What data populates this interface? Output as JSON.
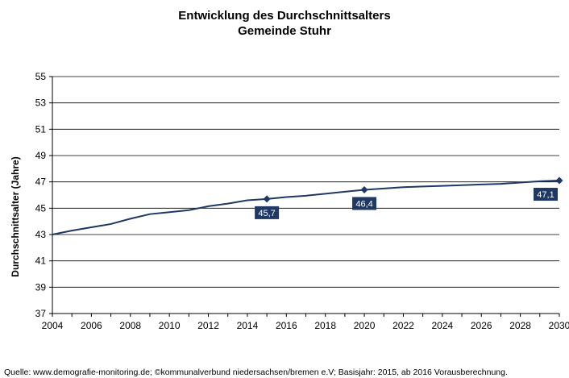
{
  "chart_data": {
    "type": "line",
    "title_line1": "Entwicklung des Durchschnittsalters",
    "title_line2": "Gemeinde Stuhr",
    "ylabel": "Durchschnittsalter  (Jahre)",
    "xlabel": "",
    "ylim": [
      37,
      55
    ],
    "yticks": [
      37,
      39,
      41,
      43,
      45,
      47,
      49,
      51,
      53,
      55
    ],
    "xlim": [
      2004,
      2030
    ],
    "xticks": [
      2004,
      2006,
      2008,
      2010,
      2012,
      2014,
      2016,
      2018,
      2020,
      2022,
      2024,
      2026,
      2028,
      2030
    ],
    "grid": true,
    "legend": "none",
    "line_color": "#1f3864",
    "series": [
      {
        "x": [
          2004,
          2005,
          2006,
          2007,
          2008,
          2009,
          2010,
          2011,
          2012,
          2013,
          2014,
          2015,
          2016,
          2017,
          2018,
          2019,
          2020,
          2021,
          2022,
          2023,
          2024,
          2025,
          2026,
          2027,
          2028,
          2029,
          2030
        ],
        "values": [
          43.0,
          43.3,
          43.55,
          43.8,
          44.2,
          44.55,
          44.7,
          44.85,
          45.15,
          45.35,
          45.6,
          45.7,
          45.85,
          45.95,
          46.1,
          46.25,
          46.4,
          46.5,
          46.6,
          46.65,
          46.7,
          46.75,
          46.8,
          46.85,
          46.95,
          47.05,
          47.1
        ]
      }
    ],
    "data_labels": [
      {
        "x": 2015,
        "value": 45.7,
        "text": "45,7"
      },
      {
        "x": 2020,
        "value": 46.4,
        "text": "46,4"
      },
      {
        "x": 2030,
        "value": 47.1,
        "text": "47,1"
      }
    ]
  },
  "source_text": "Quelle:  www.demografie-monitoring.de; ©kommunalverbund niedersachsen/bremen e.V; Basisjahr: 2015, ab 2016 Vorausberechnung."
}
